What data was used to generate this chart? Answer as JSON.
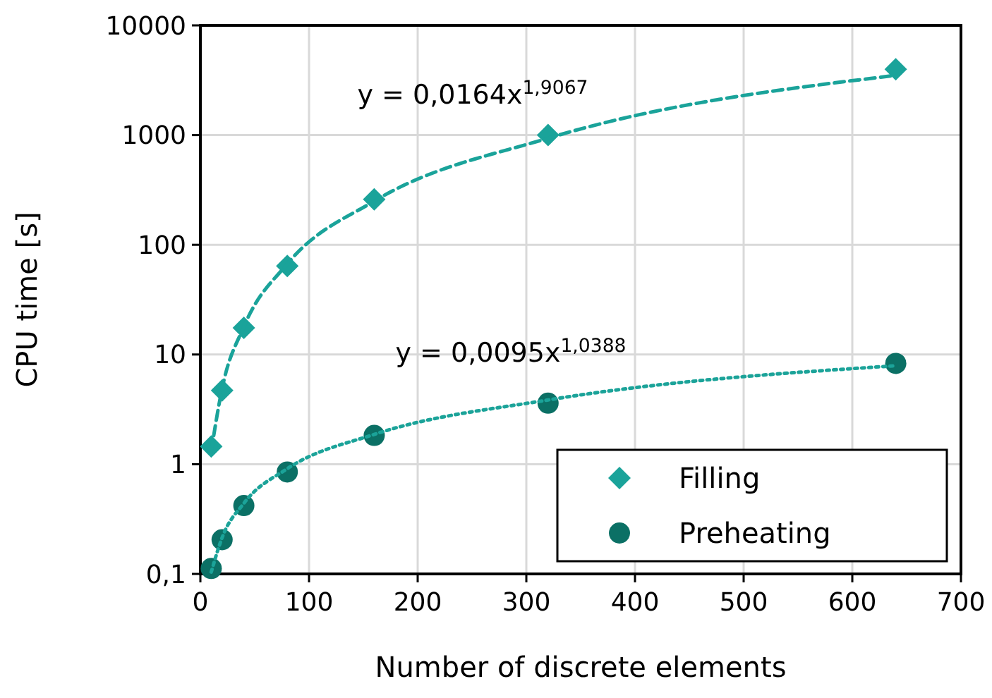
{
  "chart_data": {
    "type": "scatter",
    "xlabel": "Number of discrete elements",
    "ylabel": "CPU time [s]",
    "x": [
      10,
      20,
      40,
      80,
      160,
      320,
      640
    ],
    "series": [
      {
        "name": "Filling",
        "color": "#1aa39a",
        "marker": "diamond",
        "values": [
          1.45,
          4.7,
          17.5,
          64,
          260,
          1000,
          3980
        ]
      },
      {
        "name": "Preheating",
        "color": "#0b7065",
        "marker": "circle",
        "values": [
          0.112,
          0.205,
          0.42,
          0.85,
          1.83,
          3.6,
          8.3
        ]
      },
      {
        "type": "line",
        "color": "#1aa39a",
        "line_style": "dashed",
        "x": [
          10,
          20,
          40,
          80,
          160,
          320,
          640
        ],
        "values": [
          1.32,
          4.9,
          17.9,
          67,
          250,
          936,
          3500
        ]
      },
      {
        "type": "line",
        "color": "#1ba399",
        "line_style": "dotted",
        "x": [
          10,
          20,
          40,
          80,
          160,
          320,
          640
        ],
        "values": [
          0.104,
          0.214,
          0.44,
          0.91,
          1.87,
          3.85,
          7.9
        ]
      }
    ],
    "annotations": [
      "y = 0,0164x$^{1,9067}$",
      "y = 0,0095x$^{1,0388}$"
    ],
    "xlim": [
      0,
      700
    ],
    "xticks": [
      0,
      100,
      200,
      300,
      400,
      500,
      600,
      700
    ],
    "ylim": [
      0.1,
      10000
    ],
    "yticks": [
      {
        "value": 0.1,
        "label": "0,1"
      },
      1,
      10,
      100,
      1000,
      10000
    ],
    "log": "y",
    "grid": true,
    "legend": "bottom right"
  }
}
